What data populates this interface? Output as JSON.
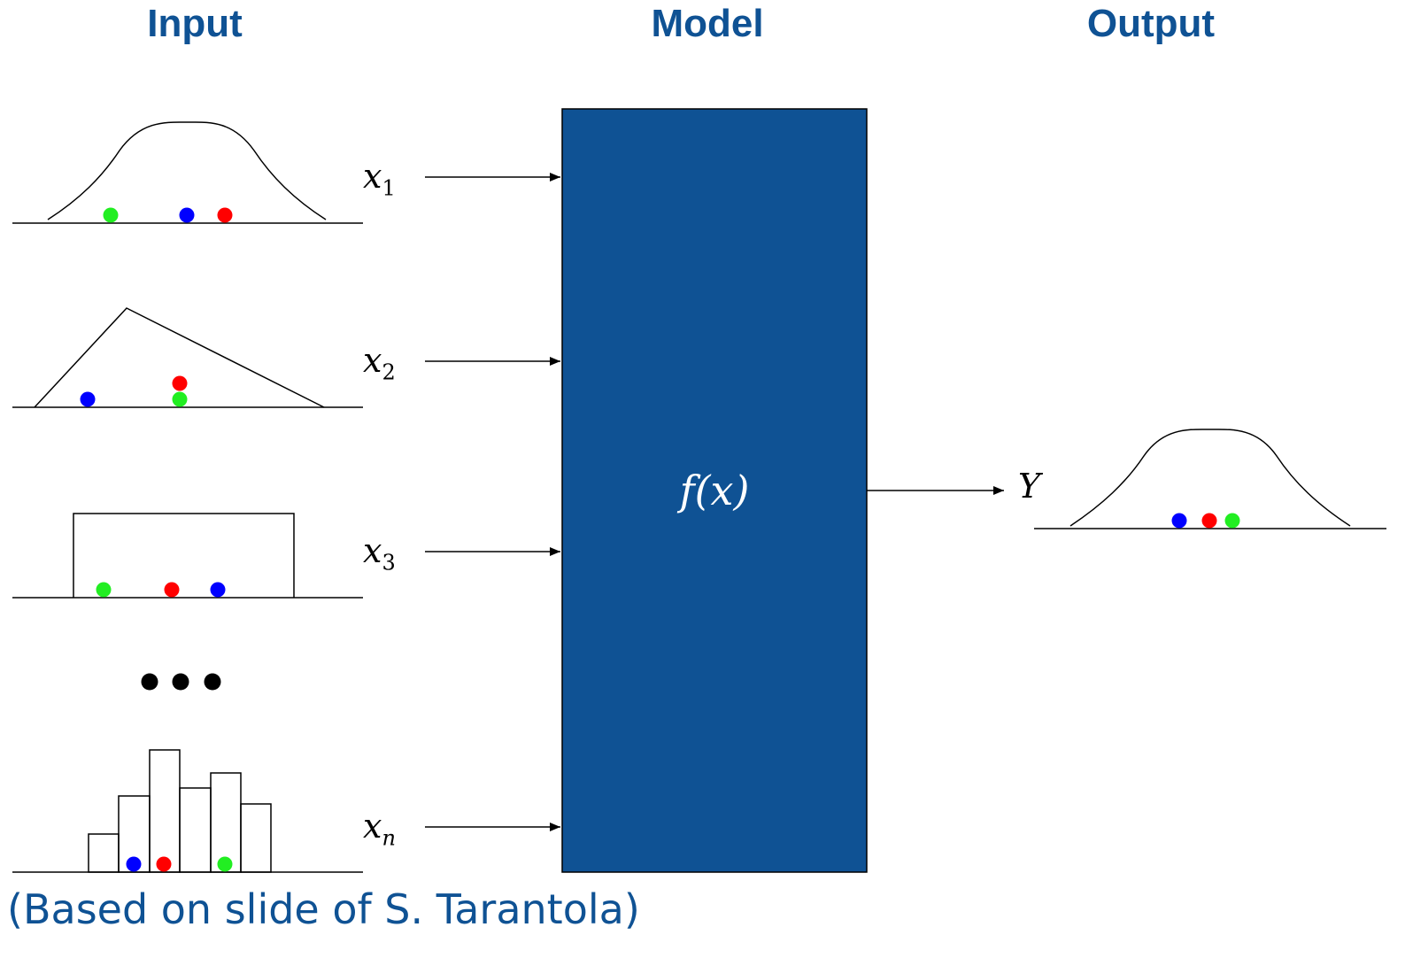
{
  "headers": {
    "input": "Input",
    "model": "Model",
    "output": "Output"
  },
  "inputs": [
    {
      "symbol": "x",
      "subscript": "1"
    },
    {
      "symbol": "x",
      "subscript": "2"
    },
    {
      "symbol": "x",
      "subscript": "3"
    },
    {
      "symbol": "x",
      "subscript": "n"
    }
  ],
  "model": {
    "function": "f(x)",
    "color": "#0f5294"
  },
  "output": {
    "symbol": "Y"
  },
  "caption": "(Based on slide of S. Tarantola)",
  "colors": {
    "header": "#0f5294",
    "dot_red": "#ff0000",
    "dot_green": "#22ee22",
    "dot_blue": "#0000ff"
  }
}
